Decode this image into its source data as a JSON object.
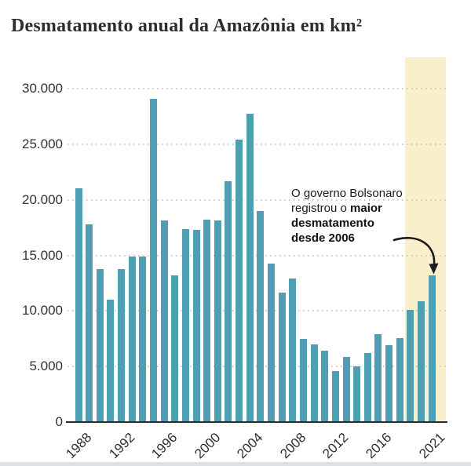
{
  "title": "Desmatamento anual da Amazônia em km²",
  "annotation": {
    "line1": "O governo Bolsonaro",
    "line2_regular": "registrou o ",
    "line2_bold": "maior",
    "line3_bold": "desmatamento",
    "line4_bold": "desde 2006"
  },
  "chart_data": {
    "type": "bar",
    "title": "Desmatamento anual da Amazônia em km²",
    "xlabel": "",
    "ylabel": "",
    "ylim": [
      0,
      30000
    ],
    "grid": "horizontal-dotted",
    "legend": "none",
    "bar_color": "#4f9fb3",
    "categories": [
      "1988",
      "1989",
      "1990",
      "1991",
      "1992",
      "1993",
      "1994",
      "1995",
      "1996",
      "1997",
      "1998",
      "1999",
      "2000",
      "2001",
      "2002",
      "2003",
      "2004",
      "2005",
      "2006",
      "2007",
      "2008",
      "2009",
      "2010",
      "2011",
      "2012",
      "2013",
      "2014",
      "2015",
      "2016",
      "2017",
      "2018",
      "2019",
      "2020",
      "2021"
    ],
    "values": [
      21050,
      17770,
      13730,
      11030,
      13786,
      14896,
      14896,
      29059,
      18161,
      13227,
      17383,
      17259,
      18226,
      18165,
      21651,
      25396,
      27772,
      19014,
      14286,
      11651,
      12911,
      7464,
      7000,
      6418,
      4571,
      5891,
      5012,
      6207,
      7893,
      6947,
      7536,
      10129,
      10851,
      13235
    ],
    "yticks": [
      {
        "value": 0,
        "label": "0"
      },
      {
        "value": 5000,
        "label": "5.000"
      },
      {
        "value": 10000,
        "label": "10.000"
      },
      {
        "value": 15000,
        "label": "15.000"
      },
      {
        "value": 20000,
        "label": "20.000"
      },
      {
        "value": 25000,
        "label": "25.000"
      },
      {
        "value": 30000,
        "label": "30.000"
      }
    ],
    "xticks_shown": [
      "1988",
      "1992",
      "1996",
      "2000",
      "2004",
      "2008",
      "2012",
      "2016",
      "2021"
    ],
    "highlight": {
      "years": [
        "2019",
        "2020",
        "2021"
      ],
      "color": "#f9efca"
    }
  },
  "colors": {
    "bar": "#4f9fb3",
    "highlight_band": "#f9efca",
    "gridline": "#c9c9c9",
    "axis_line": "#2b2b2b",
    "text": "#333333",
    "arrow": "#1c1c1c",
    "footer_strip": "#dbe1e5"
  }
}
